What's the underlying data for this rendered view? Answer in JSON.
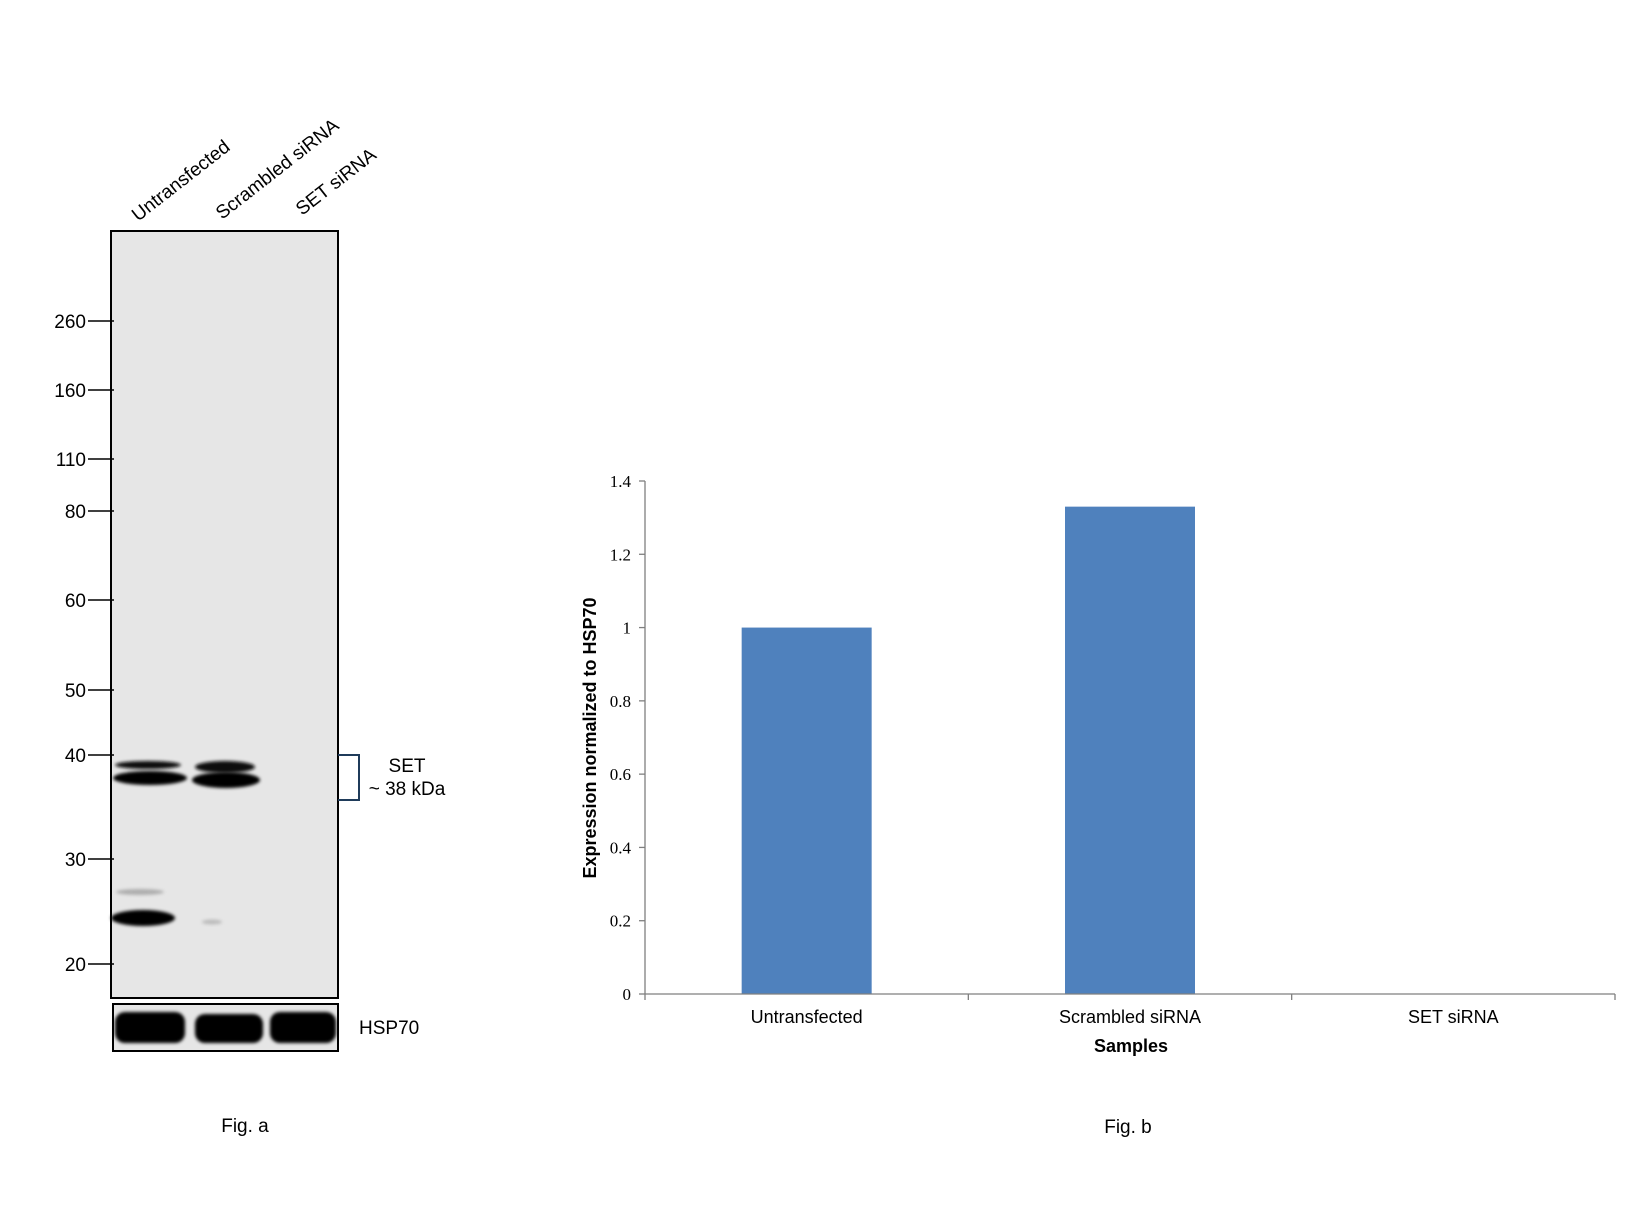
{
  "figure_a": {
    "lane_labels": [
      "Untransfected",
      "Scrambled siRNA",
      "SET siRNA"
    ],
    "mw_markers": [
      "260",
      "160",
      "110",
      "80",
      "60",
      "50",
      "40",
      "30",
      "20"
    ],
    "band_label": "SET",
    "band_size": "~ 38 kDa",
    "loading_control": "HSP70",
    "caption": "Fig. a"
  },
  "figure_b": {
    "caption": "Fig. b"
  },
  "chart_data": {
    "type": "bar",
    "categories": [
      "Untransfected",
      "Scrambled siRNA",
      "SET siRNA"
    ],
    "values": [
      1.0,
      1.33,
      0
    ],
    "xlabel": "Samples",
    "ylabel": "Expression normalized to HSP70",
    "ylim": [
      0,
      1.4
    ],
    "yticks": [
      "0",
      "0.2",
      "0.4",
      "0.6",
      "0.8",
      "1",
      "1.2",
      "1.4"
    ],
    "bar_color": "#4f81bd",
    "grid": false,
    "legend": "none"
  }
}
